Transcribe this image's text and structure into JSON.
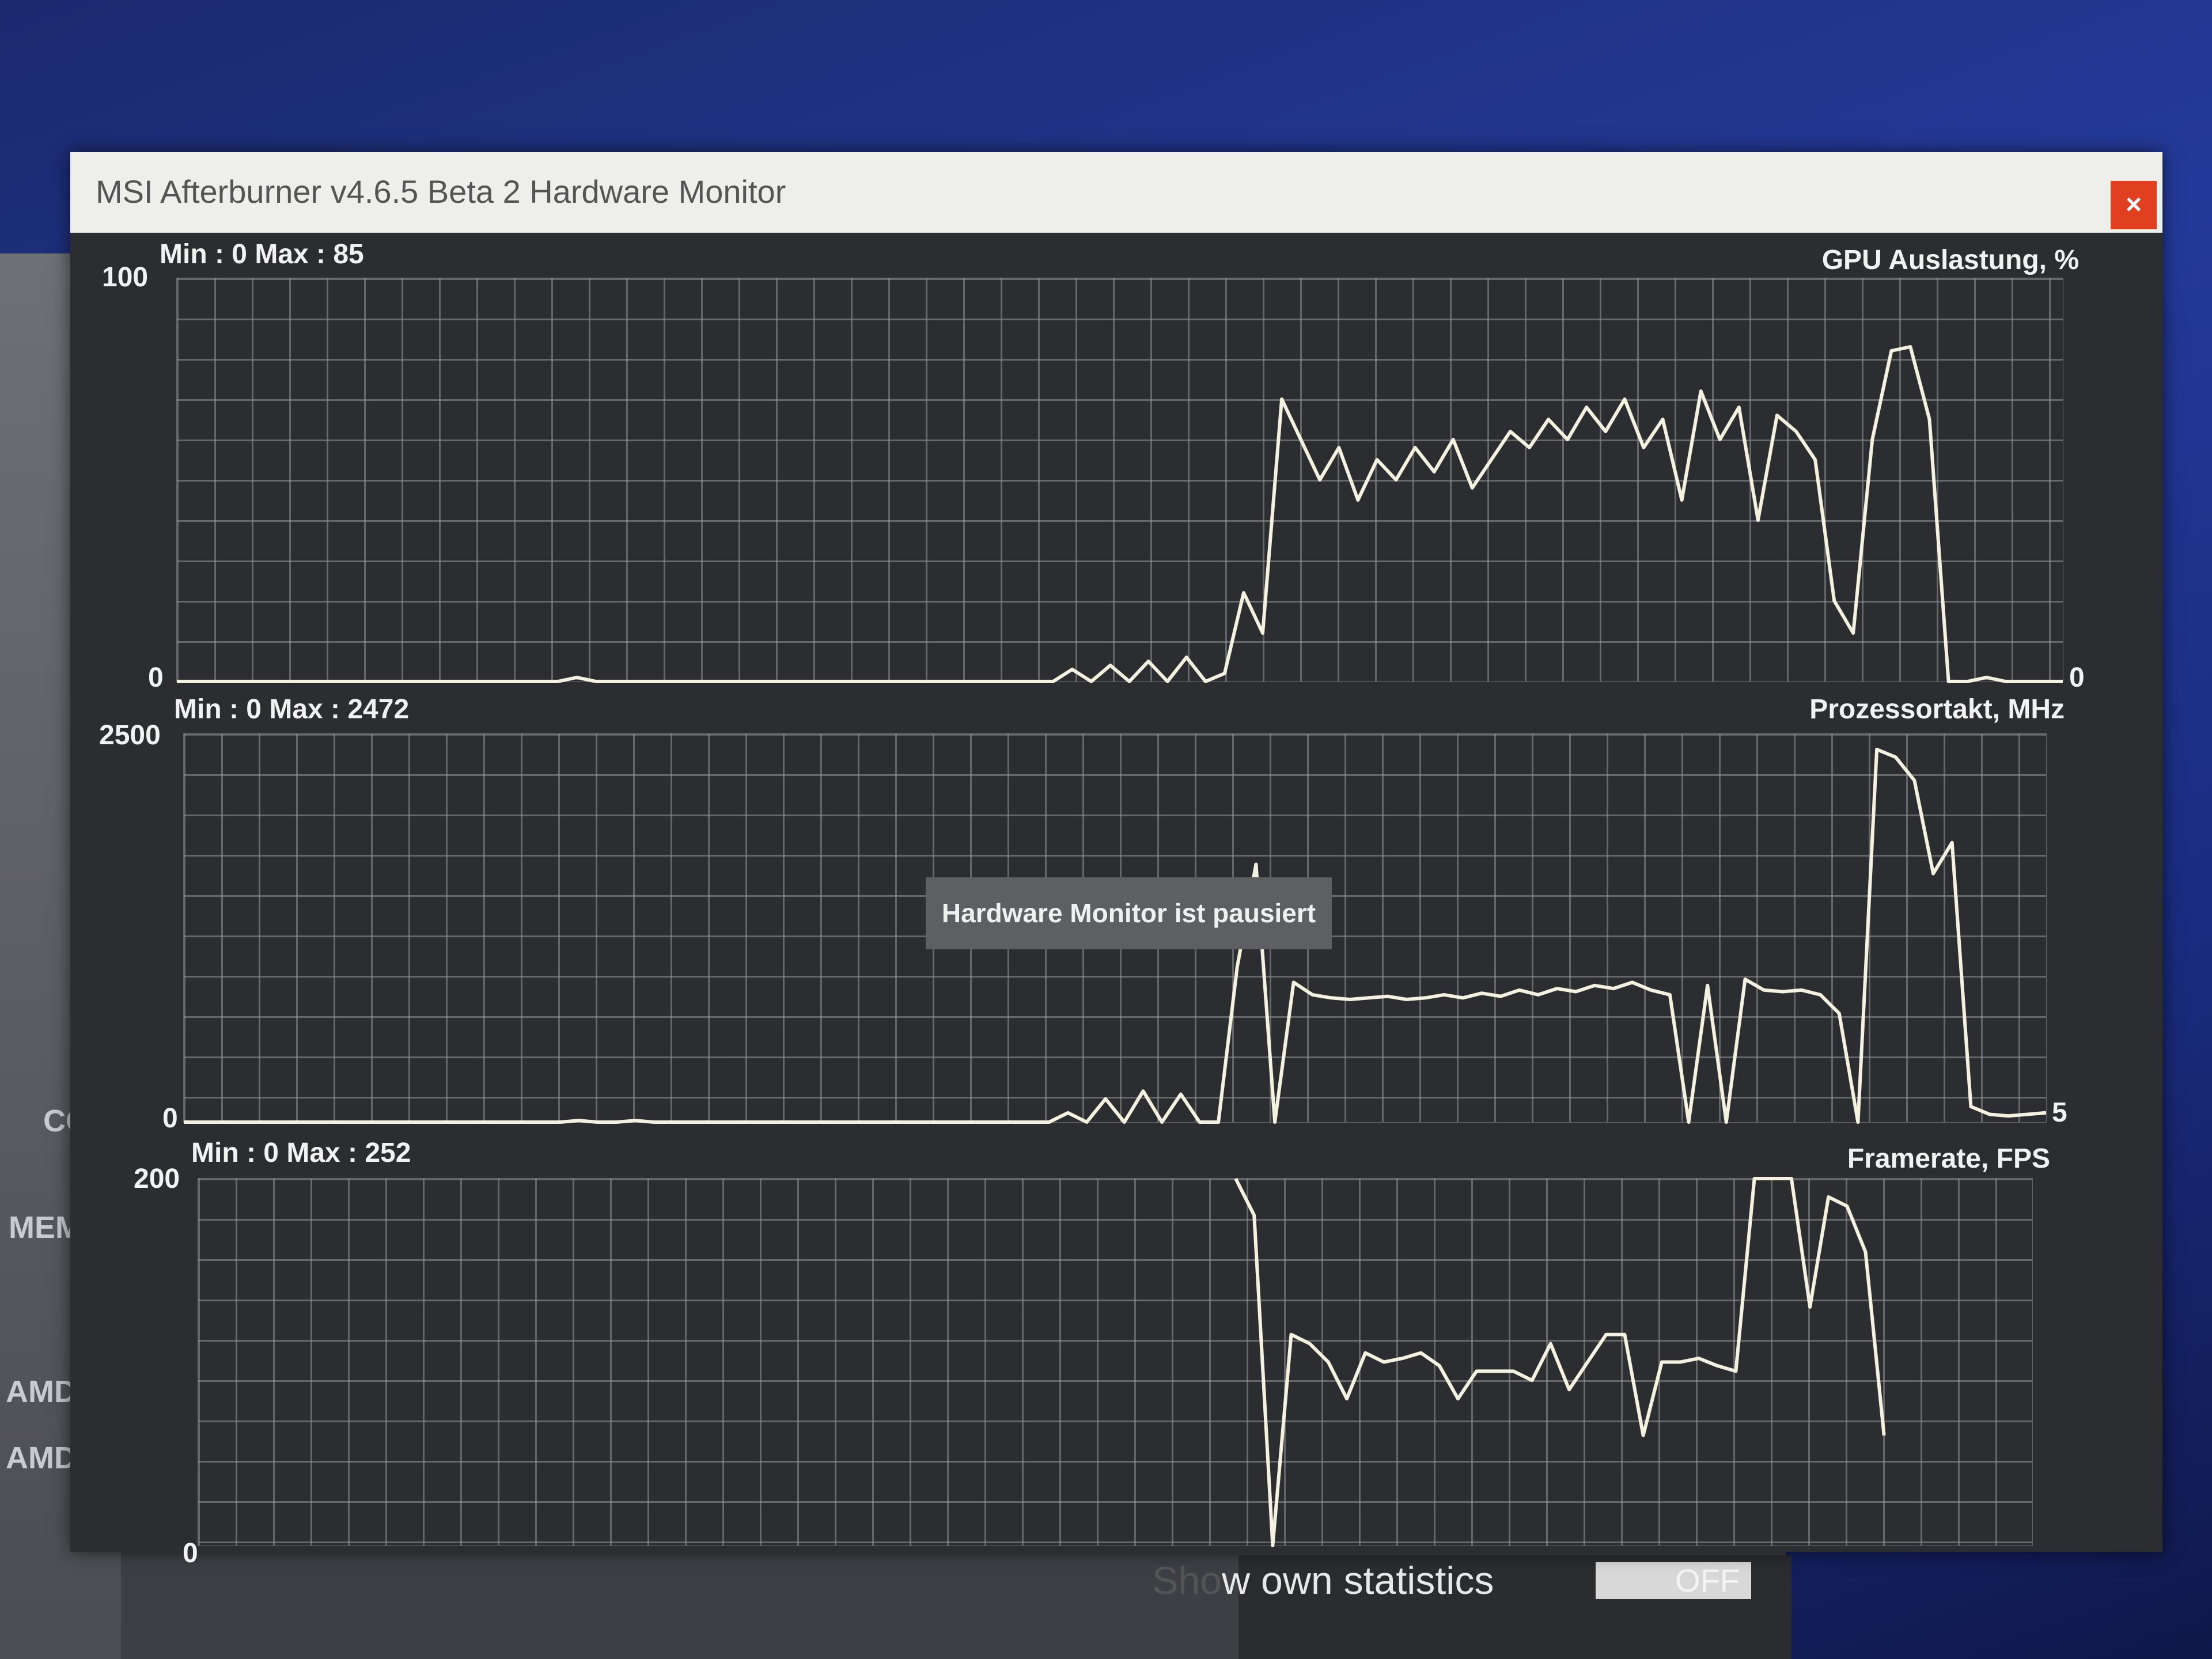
{
  "window": {
    "title": "MSI Afterburner v4.6.5 Beta 2 Hardware Monitor",
    "close_label": "×"
  },
  "tooltip": "Hardware Monitor ist pausiert",
  "background_app": {
    "labels": [
      "CO",
      "MEM",
      "AMD Ra",
      "AMD So"
    ],
    "statistics_label_faint": "Sho",
    "statistics_label": "w own statistics",
    "statistics_toggle": "OFF"
  },
  "chart_data": [
    {
      "type": "line",
      "title": "GPU Auslastung, %",
      "minmax": "Min : 0   Max : 85",
      "y_top_label": "100",
      "y_bottom_label": "0",
      "y_right_label": "0",
      "ylim": [
        0,
        100
      ],
      "grid": true,
      "color": "#f5f1e0",
      "values": [
        0,
        0,
        0,
        0,
        0,
        0,
        0,
        0,
        0,
        0,
        0,
        0,
        0,
        0,
        0,
        0,
        0,
        0,
        0,
        0,
        0,
        1,
        0,
        0,
        0,
        0,
        0,
        0,
        0,
        0,
        0,
        0,
        0,
        0,
        0,
        0,
        0,
        0,
        0,
        0,
        0,
        0,
        0,
        0,
        0,
        0,
        0,
        3,
        0,
        4,
        0,
        5,
        0,
        6,
        0,
        2,
        22,
        12,
        70,
        60,
        50,
        58,
        45,
        55,
        50,
        58,
        52,
        60,
        48,
        55,
        62,
        58,
        65,
        60,
        68,
        62,
        70,
        58,
        65,
        45,
        72,
        60,
        68,
        40,
        66,
        62,
        55,
        20,
        12,
        60,
        82,
        83,
        65,
        0,
        0,
        1,
        0,
        0,
        0,
        0
      ]
    },
    {
      "type": "line",
      "title": "Prozessortakt, MHz",
      "minmax": "Min : 0   Max : 2472",
      "y_top_label": "2500",
      "y_bottom_label": "0",
      "y_right_label": "5",
      "ylim": [
        0,
        2500
      ],
      "grid": true,
      "color": "#f5f1e0",
      "values": [
        0,
        0,
        0,
        0,
        0,
        0,
        0,
        0,
        0,
        0,
        0,
        0,
        0,
        0,
        0,
        0,
        0,
        0,
        0,
        0,
        0,
        10,
        0,
        0,
        10,
        0,
        0,
        0,
        0,
        0,
        0,
        0,
        0,
        0,
        0,
        0,
        0,
        0,
        0,
        0,
        0,
        0,
        0,
        0,
        0,
        0,
        0,
        60,
        0,
        150,
        0,
        200,
        0,
        180,
        0,
        0,
        1000,
        1660,
        0,
        900,
        820,
        800,
        790,
        800,
        810,
        790,
        800,
        820,
        800,
        830,
        810,
        850,
        820,
        860,
        840,
        880,
        860,
        900,
        850,
        820,
        0,
        880,
        0,
        920,
        850,
        840,
        850,
        820,
        700,
        0,
        2400,
        2350,
        2200,
        1600,
        1800,
        100,
        50,
        40,
        50,
        60
      ]
    },
    {
      "type": "line",
      "title": "Framerate, FPS",
      "minmax": "Min : 0   Max : 252",
      "y_top_label": "200",
      "y_bottom_label": "0",
      "ylim": [
        0,
        200
      ],
      "grid": true,
      "color": "#f5f1e0",
      "values": [
        null,
        null,
        null,
        null,
        null,
        null,
        null,
        null,
        null,
        null,
        null,
        null,
        null,
        null,
        null,
        null,
        null,
        null,
        null,
        null,
        null,
        null,
        null,
        null,
        null,
        null,
        null,
        null,
        null,
        null,
        null,
        null,
        null,
        null,
        null,
        null,
        null,
        null,
        null,
        null,
        null,
        null,
        null,
        null,
        null,
        null,
        null,
        null,
        null,
        null,
        null,
        null,
        null,
        null,
        null,
        null,
        200,
        180,
        0,
        115,
        110,
        100,
        80,
        105,
        100,
        102,
        105,
        98,
        80,
        95,
        95,
        95,
        90,
        110,
        85,
        100,
        115,
        115,
        60,
        100,
        100,
        102,
        98,
        95,
        200,
        200,
        200,
        130,
        190,
        185,
        160,
        60,
        null,
        null,
        null,
        null,
        null,
        null,
        null,
        null
      ]
    }
  ]
}
